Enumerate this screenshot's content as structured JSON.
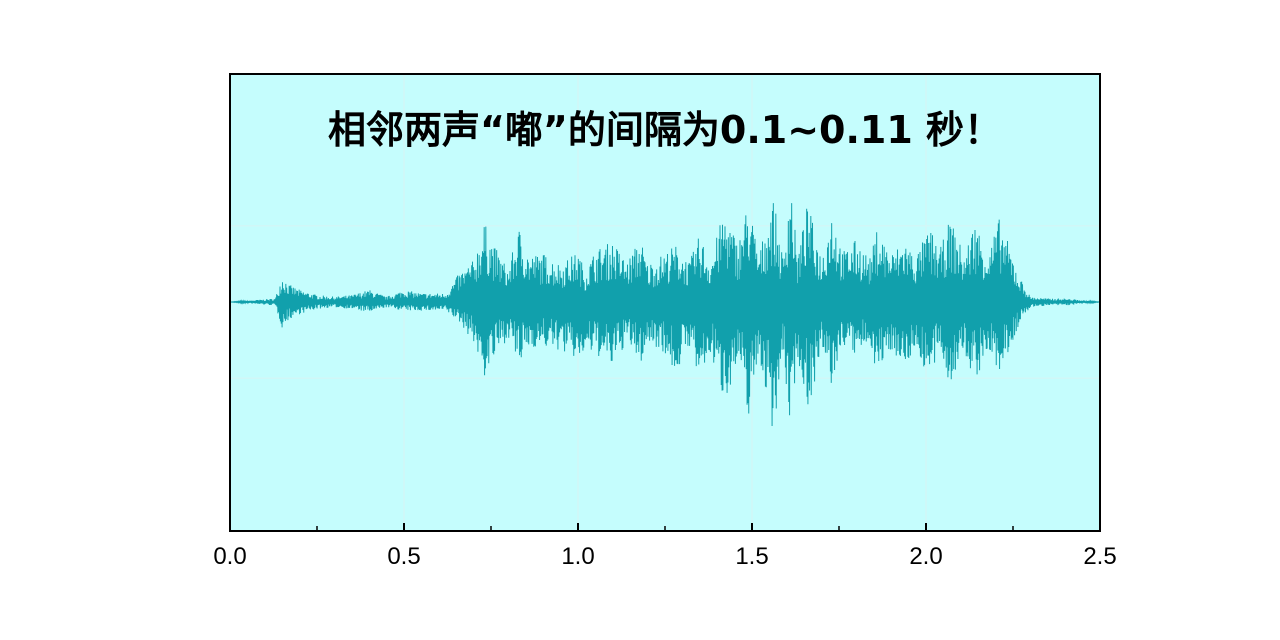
{
  "chart_data": {
    "type": "line",
    "title": "相邻两声“嘟”的间隔为0.1~0.11 秒！",
    "xlabel": "",
    "ylabel": "",
    "xlim": [
      0.0,
      2.5
    ],
    "ylim": [
      -1.0,
      1.0
    ],
    "x_ticks": [
      "0.0",
      "0.5",
      "1.0",
      "1.5",
      "2.0",
      "2.5"
    ],
    "x_tick_values": [
      0.0,
      0.5,
      1.0,
      1.5,
      2.0,
      2.5
    ],
    "grid": true,
    "colors": {
      "background": "#c5fdfd",
      "waveform": "#11a0ac",
      "grid": "#d7f4f4",
      "frame": "#000000"
    },
    "series": [
      {
        "values": [],
        "envelope": {
          "t": [
            0.0,
            0.13,
            0.15,
            0.17,
            0.2,
            0.25,
            0.3,
            0.35,
            0.4,
            0.45,
            0.5,
            0.55,
            0.6,
            0.62,
            0.66,
            0.7,
            0.73,
            0.76,
            0.8,
            0.83,
            0.86,
            0.9,
            0.95,
            1.0,
            1.02,
            1.05,
            1.1,
            1.14,
            1.18,
            1.2,
            1.24,
            1.28,
            1.32,
            1.35,
            1.38,
            1.42,
            1.46,
            1.49,
            1.52,
            1.56,
            1.59,
            1.61,
            1.63,
            1.66,
            1.7,
            1.73,
            1.76,
            1.8,
            1.84,
            1.86,
            1.9,
            1.94,
            1.97,
            2.01,
            2.04,
            2.07,
            2.11,
            2.14,
            2.18,
            2.21,
            2.24,
            2.27,
            2.3,
            2.35,
            2.4,
            2.45,
            2.5
          ],
          "upper": [
            0.0,
            0.02,
            0.16,
            0.1,
            0.07,
            0.04,
            0.03,
            0.04,
            0.07,
            0.03,
            0.07,
            0.05,
            0.05,
            0.05,
            0.17,
            0.24,
            0.46,
            0.32,
            0.19,
            0.43,
            0.27,
            0.28,
            0.22,
            0.29,
            0.18,
            0.3,
            0.35,
            0.23,
            0.37,
            0.22,
            0.27,
            0.33,
            0.23,
            0.39,
            0.24,
            0.53,
            0.34,
            0.59,
            0.27,
            0.61,
            0.24,
            0.75,
            0.26,
            0.57,
            0.26,
            0.55,
            0.29,
            0.36,
            0.25,
            0.43,
            0.28,
            0.36,
            0.26,
            0.43,
            0.3,
            0.48,
            0.27,
            0.47,
            0.29,
            0.48,
            0.32,
            0.14,
            0.03,
            0.02,
            0.02,
            0.01,
            0.0
          ],
          "lower": [
            0.0,
            -0.02,
            -0.15,
            -0.1,
            -0.07,
            -0.04,
            -0.03,
            -0.04,
            -0.06,
            -0.03,
            -0.05,
            -0.05,
            -0.05,
            -0.05,
            -0.12,
            -0.23,
            -0.44,
            -0.33,
            -0.2,
            -0.38,
            -0.26,
            -0.26,
            -0.28,
            -0.34,
            -0.3,
            -0.3,
            -0.38,
            -0.23,
            -0.36,
            -0.24,
            -0.27,
            -0.42,
            -0.25,
            -0.48,
            -0.3,
            -0.57,
            -0.36,
            -0.66,
            -0.3,
            -0.75,
            -0.32,
            -0.74,
            -0.31,
            -0.62,
            -0.3,
            -0.5,
            -0.24,
            -0.32,
            -0.23,
            -0.43,
            -0.27,
            -0.38,
            -0.26,
            -0.46,
            -0.29,
            -0.48,
            -0.3,
            -0.46,
            -0.29,
            -0.42,
            -0.28,
            -0.12,
            -0.03,
            -0.02,
            -0.02,
            -0.01,
            0.0
          ]
        }
      }
    ]
  }
}
